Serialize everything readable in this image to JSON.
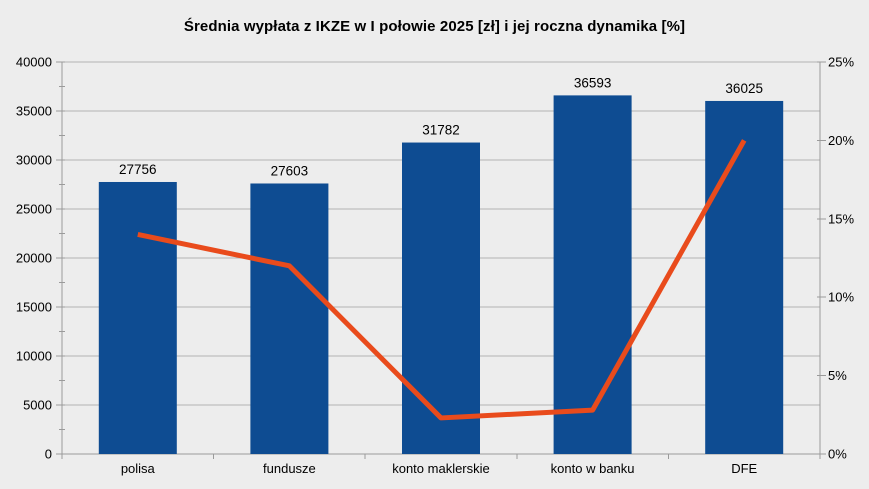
{
  "title": "Średnia wypłata z IKZE w I połowie 2025 [zł] i jej roczna dynamika [%]",
  "colors": {
    "background": "#ededed",
    "bar": "#0e4c92",
    "line": "#e94b1c",
    "gridline": "#b3b3b3",
    "axis": "#9a9a9a",
    "text": "#000000"
  },
  "chart_data": {
    "type": "bar+line combo",
    "title": "Średnia wypłata z IKZE w I połowie 2025 [zł] i jej roczna dynamika [%]",
    "categories": [
      "polisa",
      "fundusze",
      "konto maklerskie",
      "konto w banku",
      "DFE"
    ],
    "series": [
      {
        "name": "Średnia wypłata z IKZE w I połowie 2025 [zł]",
        "type": "bar",
        "axis": "left",
        "values": [
          27756,
          27603,
          31782,
          36593,
          36025
        ],
        "data_labels": [
          "27756",
          "27603",
          "31782",
          "36593",
          "36025"
        ]
      },
      {
        "name": "roczna dynamika [%]",
        "type": "line",
        "axis": "right",
        "values": [
          14,
          12,
          2.3,
          2.8,
          20
        ]
      }
    ],
    "left_axis": {
      "min": 0,
      "max": 40000,
      "major_step": 5000,
      "minor_step": 2500,
      "tick_labels": [
        "0",
        "5000",
        "10000",
        "15000",
        "20000",
        "25000",
        "30000",
        "35000",
        "40000"
      ]
    },
    "right_axis": {
      "min": 0,
      "max": 25,
      "major_step": 5,
      "tick_labels": [
        "0%",
        "5%",
        "10%",
        "15%",
        "20%",
        "25%"
      ]
    },
    "grid": "horizontal major gridlines from left axis (every 5000)",
    "legend": "none",
    "xlabel": "",
    "ylabel_left": "",
    "ylabel_right": ""
  }
}
